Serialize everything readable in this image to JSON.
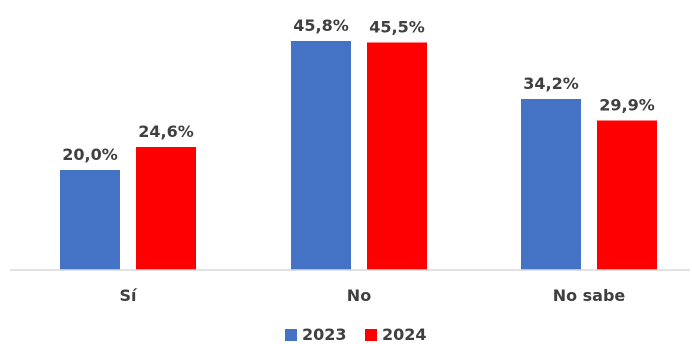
{
  "chart_data": {
    "type": "bar",
    "categories": [
      "Sí",
      "No",
      "No sabe"
    ],
    "series": [
      {
        "name": "2023",
        "values": [
          20.0,
          45.8,
          34.2
        ],
        "labels": [
          "20,0%",
          "45,8%",
          "34,2%"
        ],
        "color": "#4472C4"
      },
      {
        "name": "2024",
        "values": [
          24.6,
          45.5,
          29.9
        ],
        "labels": [
          "24,6%",
          "45,5%",
          "29,9%"
        ],
        "color": "#FF0000"
      }
    ],
    "unit": "%",
    "ylim": [
      0,
      50
    ],
    "grid": false,
    "legend_position": "bottom",
    "baseline_color": "#D9D9D9"
  }
}
